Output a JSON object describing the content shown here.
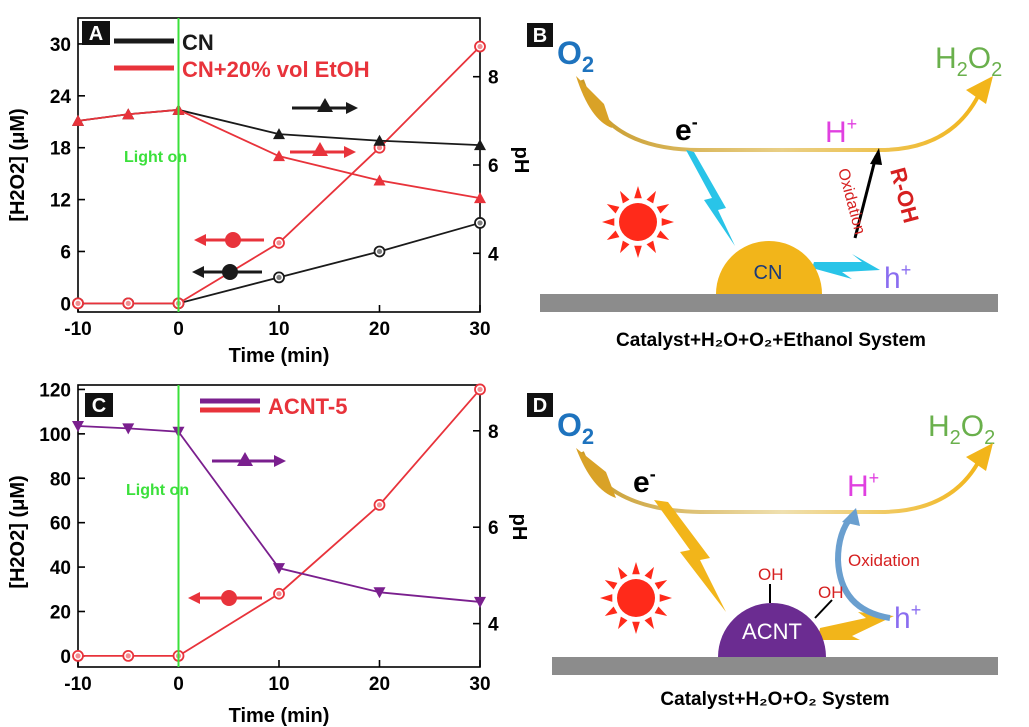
{
  "colors": {
    "black_series": "#1a1a1a",
    "red_series": "#e8333b",
    "purple_series": "#7a1f8e",
    "light_on": "#3be03b",
    "arc_gold": "#d9a227",
    "electron_blue": "#29c4e8",
    "catalyst_gold": "#f2b51a",
    "acnt_purple": "#6b2c91",
    "oxygen_blue": "#1e73be",
    "h2o2_green": "#6ab04c",
    "proton_magenta": "#e040e0",
    "hole_purple": "#8a6df0",
    "oxidation_red": "#d62020",
    "sun_red": "#ff2a1a",
    "base_gray": "#8c8c8c"
  },
  "chart_data": [
    {
      "panel": "A",
      "type": "line",
      "x": [
        -10,
        -5,
        0,
        10,
        20,
        30
      ],
      "xlabel": "Time (min)",
      "ylabel": "[H2O2] (μM)",
      "y2label": "pH",
      "xlim": [
        -10,
        30
      ],
      "ylim": [
        -1,
        33
      ],
      "y2lim": [
        2.67,
        9.33
      ],
      "xticks": [
        "-10",
        "0",
        "10",
        "20",
        "30"
      ],
      "yticks": [
        "0",
        "6",
        "12",
        "18",
        "24",
        "30"
      ],
      "y2ticks": [
        "4",
        "6",
        "8"
      ],
      "annotation": "Light on",
      "series": [
        {
          "name": "CN",
          "axis": "left",
          "marker": "circle",
          "values": [
            0,
            0,
            0,
            3,
            6,
            9.3
          ]
        },
        {
          "name": "CN+20% vol EtOH",
          "axis": "left",
          "marker": "circle",
          "values": [
            0,
            0,
            0,
            7,
            18,
            29.7
          ]
        },
        {
          "name": "CN",
          "axis": "right",
          "marker": "triangle-up",
          "values": [
            7.0,
            7.15,
            7.25,
            6.7,
            6.55,
            6.45
          ]
        },
        {
          "name": "CN+20% vol EtOH",
          "axis": "right",
          "marker": "triangle-up",
          "values": [
            7.0,
            7.15,
            7.25,
            6.2,
            5.65,
            5.25
          ]
        }
      ],
      "legend": [
        {
          "label": "CN",
          "color": "#1a1a1a"
        },
        {
          "label": "CN+20% vol EtOH",
          "color": "#e8333b"
        }
      ]
    },
    {
      "panel": "C",
      "type": "line",
      "x": [
        -10,
        -5,
        0,
        10,
        20,
        30
      ],
      "xlabel": "Time (min)",
      "ylabel": "[H2O2] (μM)",
      "y2label": "pH",
      "xlim": [
        -10,
        30
      ],
      "ylim": [
        -5,
        122
      ],
      "y2lim": [
        3.1,
        8.95
      ],
      "xticks": [
        "-10",
        "0",
        "10",
        "20",
        "30"
      ],
      "yticks": [
        "0",
        "20",
        "40",
        "60",
        "80",
        "100",
        "120"
      ],
      "y2ticks": [
        "4",
        "6",
        "8"
      ],
      "annotation": "Light on",
      "series": [
        {
          "name": "ACNT-5",
          "axis": "left",
          "marker": "circle",
          "values": [
            0,
            0,
            0,
            28,
            68,
            120
          ]
        },
        {
          "name": "ACNT-5",
          "axis": "right",
          "marker": "triangle-down",
          "values": [
            8.1,
            8.05,
            7.98,
            5.15,
            4.65,
            4.45
          ]
        }
      ],
      "legend": [
        {
          "label": "ACNT-5",
          "color": "#7a1f8e"
        }
      ]
    }
  ],
  "panels": {
    "A": {
      "letter": "A"
    },
    "B": {
      "letter": "B",
      "o2": "O",
      "o2_sub": "2",
      "h2o2_h": "H",
      "h2o2_sub1": "2",
      "h2o2_o": "O",
      "h2o2_sub2": "2",
      "electron": "e",
      "electron_sup": "-",
      "proton": "H",
      "proton_sup": "+",
      "hole": "h",
      "hole_sup": "+",
      "catalyst": "CN",
      "oxidation": "Oxidation",
      "reagent": "R-OH",
      "caption": "Catalyst+H₂O+O₂+Ethanol System"
    },
    "C": {
      "letter": "C"
    },
    "D": {
      "letter": "D",
      "o2": "O",
      "o2_sub": "2",
      "h2o2_h": "H",
      "h2o2_sub1": "2",
      "h2o2_o": "O",
      "h2o2_sub2": "2",
      "electron": "e",
      "electron_sup": "-",
      "proton": "H",
      "proton_sup": "+",
      "hole": "h",
      "hole_sup": "+",
      "catalyst": "ACNT",
      "oh1": "OH",
      "oh2": "OH",
      "oxidation": "Oxidation",
      "caption": "Catalyst+H₂O+O₂ System"
    }
  }
}
